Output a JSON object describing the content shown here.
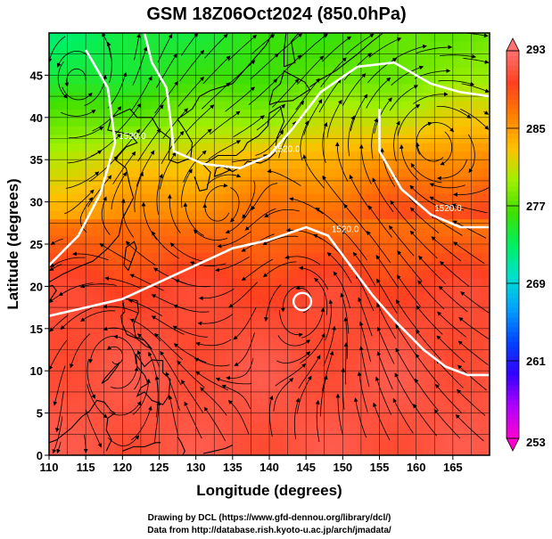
{
  "chart_data": {
    "type": "heatmap",
    "title": "GSM 18Z06Oct2024 (850.0hPa)",
    "xlabel": "Longitude (degrees)",
    "ylabel": "Latitude  (degrees)",
    "xlim": [
      110,
      170
    ],
    "ylim": [
      0,
      50
    ],
    "x_ticks": [
      110,
      115,
      120,
      125,
      130,
      135,
      140,
      145,
      150,
      155,
      160,
      165
    ],
    "y_ticks": [
      0,
      5,
      10,
      15,
      20,
      25,
      30,
      35,
      40,
      45
    ],
    "grid": true,
    "colorbar": {
      "ticks": [
        253,
        261,
        269,
        277,
        285,
        293
      ],
      "range": [
        253,
        293
      ],
      "colors": [
        "#ff00cc",
        "#b000ff",
        "#3300ff",
        "#0044ff",
        "#00a0ff",
        "#00e0d0",
        "#00f060",
        "#40e000",
        "#a0f000",
        "#ffc000",
        "#ff8000",
        "#ff4020",
        "#ff7070"
      ]
    },
    "contour_lines": [
      {
        "label": "1520.0",
        "points": [
          [
            110,
            16.5
          ],
          [
            115,
            17.5
          ],
          [
            120,
            18.5
          ],
          [
            125,
            20.5
          ],
          [
            130,
            22.5
          ],
          [
            135,
            24.5
          ],
          [
            140,
            25.5
          ],
          [
            145,
            27.0
          ],
          [
            148,
            26.0
          ],
          [
            151,
            22.5
          ],
          [
            154,
            19.0
          ],
          [
            157,
            16.0
          ],
          [
            161,
            12.5
          ],
          [
            164,
            10.5
          ],
          [
            167,
            9.5
          ],
          [
            170,
            9.5
          ]
        ]
      },
      {
        "label": "1520.0",
        "points": [
          [
            110,
            22.5
          ],
          [
            114,
            26.0
          ],
          [
            117,
            31.0
          ],
          [
            119,
            37.0
          ],
          [
            118,
            43.5
          ],
          [
            115,
            48.0
          ]
        ]
      },
      {
        "label": "1520.0",
        "points": [
          [
            123,
            50.0
          ],
          [
            124,
            46.5
          ],
          [
            126,
            43.5
          ],
          [
            126.5,
            40.0
          ],
          [
            127,
            36.0
          ],
          [
            131,
            34.5
          ],
          [
            136,
            34.0
          ],
          [
            140,
            35.5
          ],
          [
            143,
            38.5
          ],
          [
            147,
            43.0
          ],
          [
            152,
            46.0
          ],
          [
            157,
            46.5
          ],
          [
            162,
            44.0
          ],
          [
            166,
            43.0
          ],
          [
            170,
            42.5
          ]
        ]
      },
      {
        "label": "1520.0",
        "points": [
          [
            155,
            41.0
          ],
          [
            155,
            36.0
          ],
          [
            158,
            31.5
          ],
          [
            162,
            28.5
          ],
          [
            166,
            27.0
          ],
          [
            170,
            27.0
          ]
        ]
      }
    ],
    "low_center": {
      "lon": 144.5,
      "lat": 18.2,
      "r": 1.2
    },
    "temperature_field": {
      "lat_bands": [
        {
          "lat": 0,
          "value": 291
        },
        {
          "lat": 10,
          "value": 291
        },
        {
          "lat": 20,
          "value": 290
        },
        {
          "lat": 25,
          "value": 288
        },
        {
          "lat": 30,
          "value": 286
        },
        {
          "lat": 35,
          "value": 283
        },
        {
          "lat": 40,
          "value": 279
        },
        {
          "lat": 45,
          "value": 276
        },
        {
          "lat": 50,
          "value": 275
        }
      ]
    },
    "streamline_field": {
      "vortices": [
        {
          "lon": 144.5,
          "lat": 18.5,
          "strength": 1.5,
          "sense": "ccw"
        },
        {
          "lon": 162,
          "lat": 37,
          "strength": 1.0,
          "sense": "cw"
        },
        {
          "lon": 133,
          "lat": 29,
          "strength": 0.8,
          "sense": "cw"
        },
        {
          "lon": 119,
          "lat": 12,
          "strength": 0.8,
          "sense": "ccw"
        },
        {
          "lon": 114,
          "lat": 44,
          "strength": 0.8,
          "sense": "ccw"
        }
      ],
      "background_flow": [
        {
          "lat": 0,
          "u": -1.0,
          "v": 0.1
        },
        {
          "lat": 15,
          "u": -1.0,
          "v": 0.1
        },
        {
          "lat": 28,
          "u": 0.3,
          "v": 0.2
        },
        {
          "lat": 40,
          "u": 1.2,
          "v": 0.1
        },
        {
          "lat": 50,
          "u": 1.0,
          "v": -0.2
        }
      ]
    },
    "credits": [
      "Drawing by DCL (https://www.gfd-dennou.org/library/dcl/)",
      "Data from http://database.rish.kyoto-u.ac.jp/arch/jmadata/"
    ]
  }
}
